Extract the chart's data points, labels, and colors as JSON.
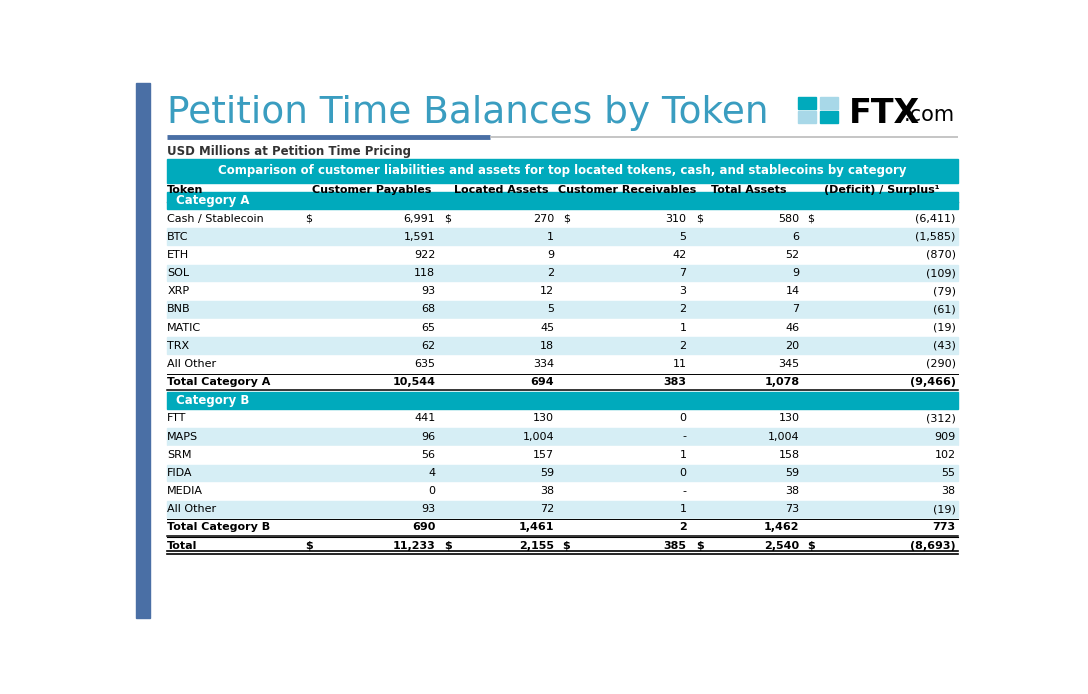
{
  "title": "Petition Time Balances by Token",
  "subtitle": "USD Millions at Petition Time Pricing",
  "banner": "Comparison of customer liabilities and assets for top located tokens, cash, and stablecoins by category",
  "columns": [
    "Token",
    "Customer Payables",
    "Located Assets",
    "Customer Receivables",
    "Total Assets",
    "(Deficit) / Surplus¹"
  ],
  "rows": [
    {
      "type": "category",
      "label": "Category A"
    },
    {
      "type": "data",
      "token": "Cash / Stablecoin",
      "cp_d": "$",
      "cp": "6,991",
      "la_d": "$",
      "la": "270",
      "cr_d": "$",
      "cr": "310",
      "ta_d": "$",
      "ta": "580",
      "ds_d": "$",
      "ds": "(6,411)",
      "bg": "#FFFFFF"
    },
    {
      "type": "data",
      "token": "BTC",
      "cp_d": "",
      "cp": "1,591",
      "la_d": "",
      "la": "1",
      "cr_d": "",
      "cr": "5",
      "ta_d": "",
      "ta": "6",
      "ds_d": "",
      "ds": "(1,585)",
      "bg": "#D6EEF5"
    },
    {
      "type": "data",
      "token": "ETH",
      "cp_d": "",
      "cp": "922",
      "la_d": "",
      "la": "9",
      "cr_d": "",
      "cr": "42",
      "ta_d": "",
      "ta": "52",
      "ds_d": "",
      "ds": "(870)",
      "bg": "#FFFFFF"
    },
    {
      "type": "data",
      "token": "SOL",
      "cp_d": "",
      "cp": "118",
      "la_d": "",
      "la": "2",
      "cr_d": "",
      "cr": "7",
      "ta_d": "",
      "ta": "9",
      "ds_d": "",
      "ds": "(109)",
      "bg": "#D6EEF5"
    },
    {
      "type": "data",
      "token": "XRP",
      "cp_d": "",
      "cp": "93",
      "la_d": "",
      "la": "12",
      "cr_d": "",
      "cr": "3",
      "ta_d": "",
      "ta": "14",
      "ds_d": "",
      "ds": "(79)",
      "bg": "#FFFFFF"
    },
    {
      "type": "data",
      "token": "BNB",
      "cp_d": "",
      "cp": "68",
      "la_d": "",
      "la": "5",
      "cr_d": "",
      "cr": "2",
      "ta_d": "",
      "ta": "7",
      "ds_d": "",
      "ds": "(61)",
      "bg": "#D6EEF5"
    },
    {
      "type": "data",
      "token": "MATIC",
      "cp_d": "",
      "cp": "65",
      "la_d": "",
      "la": "45",
      "cr_d": "",
      "cr": "1",
      "ta_d": "",
      "ta": "46",
      "ds_d": "",
      "ds": "(19)",
      "bg": "#FFFFFF"
    },
    {
      "type": "data",
      "token": "TRX",
      "cp_d": "",
      "cp": "62",
      "la_d": "",
      "la": "18",
      "cr_d": "",
      "cr": "2",
      "ta_d": "",
      "ta": "20",
      "ds_d": "",
      "ds": "(43)",
      "bg": "#D6EEF5"
    },
    {
      "type": "data",
      "token": "All Other",
      "cp_d": "",
      "cp": "635",
      "la_d": "",
      "la": "334",
      "cr_d": "",
      "cr": "11",
      "ta_d": "",
      "ta": "345",
      "ds_d": "",
      "ds": "(290)",
      "bg": "#FFFFFF"
    },
    {
      "type": "total",
      "token": "Total Category A",
      "cp_d": "",
      "cp": "10,544",
      "la_d": "",
      "la": "694",
      "cr_d": "",
      "cr": "383",
      "ta_d": "",
      "ta": "1,078",
      "ds_d": "",
      "ds": "(9,466)",
      "bg": "#FFFFFF"
    },
    {
      "type": "category",
      "label": "Category B"
    },
    {
      "type": "data",
      "token": "FTT",
      "cp_d": "",
      "cp": "441",
      "la_d": "",
      "la": "130",
      "cr_d": "",
      "cr": "0",
      "ta_d": "",
      "ta": "130",
      "ds_d": "",
      "ds": "(312)",
      "bg": "#FFFFFF"
    },
    {
      "type": "data",
      "token": "MAPS",
      "cp_d": "",
      "cp": "96",
      "la_d": "",
      "la": "1,004",
      "cr_d": "",
      "cr": "-",
      "ta_d": "",
      "ta": "1,004",
      "ds_d": "",
      "ds": "909",
      "bg": "#D6EEF5"
    },
    {
      "type": "data",
      "token": "SRM",
      "cp_d": "",
      "cp": "56",
      "la_d": "",
      "la": "157",
      "cr_d": "",
      "cr": "1",
      "ta_d": "",
      "ta": "158",
      "ds_d": "",
      "ds": "102",
      "bg": "#FFFFFF"
    },
    {
      "type": "data",
      "token": "FIDA",
      "cp_d": "",
      "cp": "4",
      "la_d": "",
      "la": "59",
      "cr_d": "",
      "cr": "0",
      "ta_d": "",
      "ta": "59",
      "ds_d": "",
      "ds": "55",
      "bg": "#D6EEF5"
    },
    {
      "type": "data",
      "token": "MEDIA",
      "cp_d": "",
      "cp": "0",
      "la_d": "",
      "la": "38",
      "cr_d": "",
      "cr": "-",
      "ta_d": "",
      "ta": "38",
      "ds_d": "",
      "ds": "38",
      "bg": "#FFFFFF"
    },
    {
      "type": "data",
      "token": "All Other",
      "cp_d": "",
      "cp": "93",
      "la_d": "",
      "la": "72",
      "cr_d": "",
      "cr": "1",
      "ta_d": "",
      "ta": "73",
      "ds_d": "",
      "ds": "(19)",
      "bg": "#D6EEF5"
    },
    {
      "type": "total",
      "token": "Total Category B",
      "cp_d": "",
      "cp": "690",
      "la_d": "",
      "la": "1,461",
      "cr_d": "",
      "cr": "2",
      "ta_d": "",
      "ta": "1,462",
      "ds_d": "",
      "ds": "773",
      "bg": "#FFFFFF"
    },
    {
      "type": "grand_total",
      "token": "Total",
      "cp_d": "$",
      "cp": "11,233",
      "la_d": "$",
      "la": "2,155",
      "cr_d": "$",
      "cr": "385",
      "ta_d": "$",
      "ta": "2,540",
      "ds_d": "$",
      "ds": "(8,693)",
      "bg": "#FFFFFF"
    }
  ],
  "teal_color": "#00AABC",
  "light_blue": "#C8E6F0",
  "white": "#FFFFFF",
  "dark_blue_bar": "#4A6FA5",
  "title_color": "#3A9DC0",
  "separator_dark": "#4A6FA5",
  "separator_light": "#BBBBBB"
}
